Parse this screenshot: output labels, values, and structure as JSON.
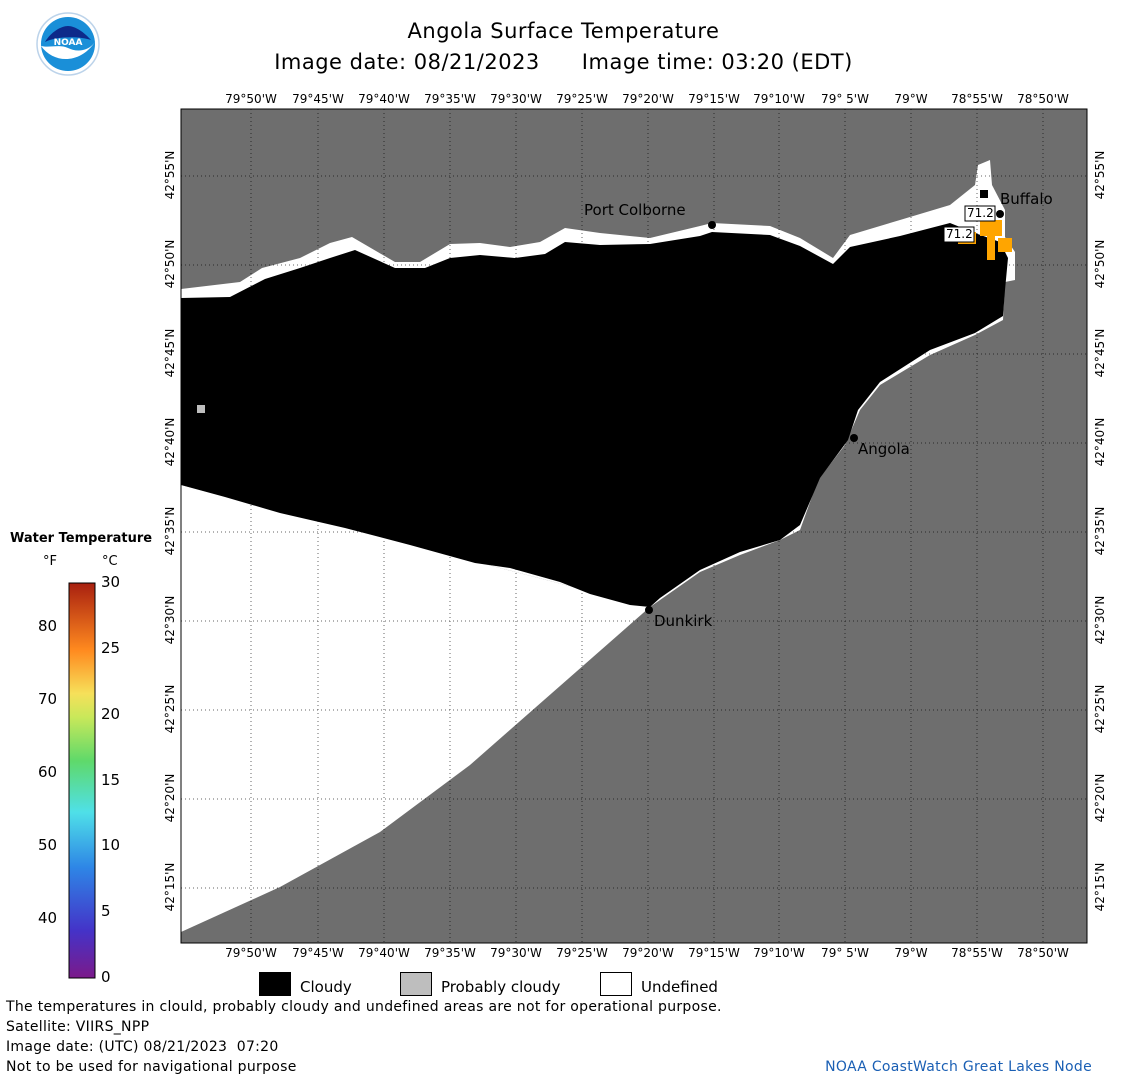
{
  "header": {
    "title": "Angola Surface Temperature",
    "image_date": "Image date: 08/21/2023",
    "image_time": "Image time: 03:20 (EDT)"
  },
  "logo": {
    "text": "NOAA"
  },
  "axes": {
    "lon_labels": [
      "79°50'W",
      "79°45'W",
      "79°40'W",
      "79°35'W",
      "79°30'W",
      "79°25'W",
      "79°20'W",
      "79°15'W",
      "79°10'W",
      "79° 5'W",
      "79°W",
      "78°55'W",
      "78°50'W"
    ],
    "lat_labels": [
      "42°55'N",
      "42°50'N",
      "42°45'N",
      "42°40'N",
      "42°35'N",
      "42°30'N",
      "42°25'N",
      "42°20'N",
      "42°15'N"
    ]
  },
  "places": [
    {
      "name": "Port Colborne"
    },
    {
      "name": "Buffalo"
    },
    {
      "name": "Angola"
    },
    {
      "name": "Dunkirk"
    }
  ],
  "temperature_labels": [
    "71.2",
    "71.2"
  ],
  "legend": {
    "title": "Water Temperature",
    "unit_f": "°F",
    "unit_c": "°C",
    "f_ticks": [
      "80",
      "70",
      "60",
      "50",
      "40"
    ],
    "c_ticks": [
      "30",
      "25",
      "20",
      "15",
      "10",
      "5",
      "0"
    ]
  },
  "key": {
    "cloudy": "Cloudy",
    "probably_cloudy": "Probably cloudy",
    "undefined": "Undefined"
  },
  "footer": {
    "note": "The temperatures in clould, probably cloudy and undefined areas are not for operational purpose.",
    "satellite": "Satellite: VIIRS_NPP",
    "utc_date": "Image date: (UTC) 08/21/2023  07:20",
    "nav": "Not to be used for navigational purpose",
    "credit": "NOAA CoastWatch Great Lakes Node"
  },
  "colors": {
    "land": "#6e6e6e",
    "cloudy": "#000000",
    "probably_cloudy": "#bebebe",
    "undefined": "#ffffff",
    "warm_water": "#ffa500"
  }
}
